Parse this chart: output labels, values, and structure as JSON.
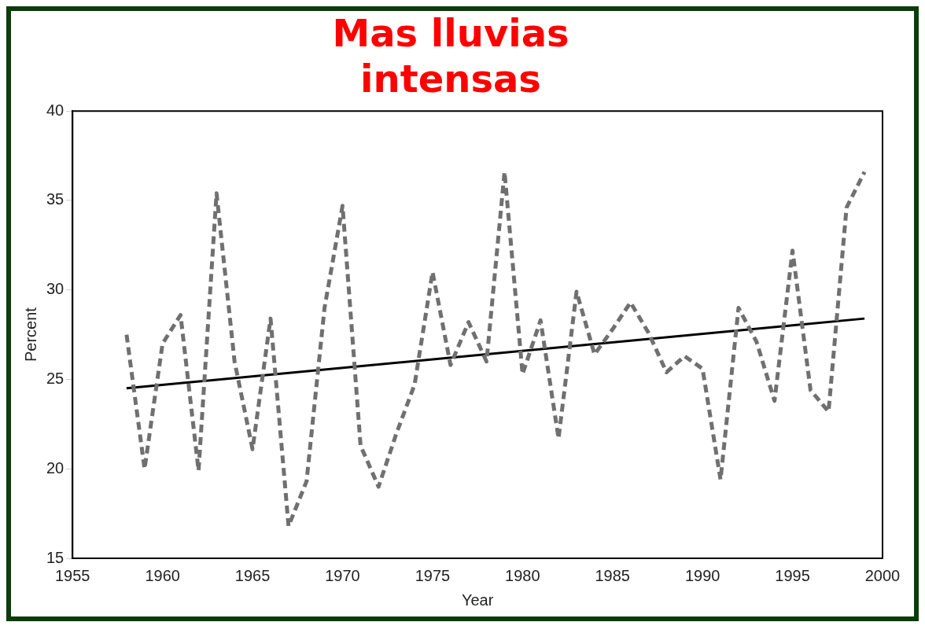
{
  "chart_data": {
    "type": "line",
    "title": "Mas lluvias intensas",
    "xlabel": "Year",
    "ylabel": "Percent",
    "x": [
      1958,
      1959,
      1960,
      1961,
      1962,
      1963,
      1964,
      1965,
      1966,
      1967,
      1968,
      1969,
      1970,
      1971,
      1972,
      1973,
      1974,
      1975,
      1976,
      1977,
      1978,
      1979,
      1980,
      1981,
      1982,
      1983,
      1984,
      1985,
      1986,
      1987,
      1988,
      1989,
      1990,
      1991,
      1992,
      1993,
      1994,
      1995,
      1996,
      1997,
      1998,
      1999
    ],
    "series": [
      {
        "color": "#707070",
        "line_style": "dashed",
        "values": [
          27.5,
          20.0,
          27.0,
          28.6,
          19.9,
          35.4,
          26.0,
          21.1,
          28.4,
          16.8,
          19.3,
          29.0,
          34.7,
          21.3,
          19.0,
          22.0,
          24.7,
          31.0,
          25.8,
          28.2,
          26.0,
          36.6,
          25.3,
          28.3,
          21.7,
          29.9,
          26.4,
          27.8,
          29.3,
          27.6,
          25.4,
          26.3,
          25.6,
          19.4,
          29.0,
          27.1,
          23.8,
          32.2,
          24.4,
          23.2,
          34.6,
          36.6
        ]
      },
      {
        "type": "line",
        "color": "#000000",
        "line_style": "solid",
        "x": [
          1958,
          1999
        ],
        "values": [
          24.5,
          28.4
        ]
      }
    ],
    "xlim": [
      1955,
      2000
    ],
    "xticks": [
      1955,
      1960,
      1965,
      1970,
      1975,
      1980,
      1985,
      1990,
      1995,
      2000
    ],
    "ylim": [
      15,
      40
    ],
    "yticks": [
      15,
      20,
      25,
      30,
      35,
      40
    ],
    "grid": false,
    "legend": false,
    "marker": "none"
  }
}
